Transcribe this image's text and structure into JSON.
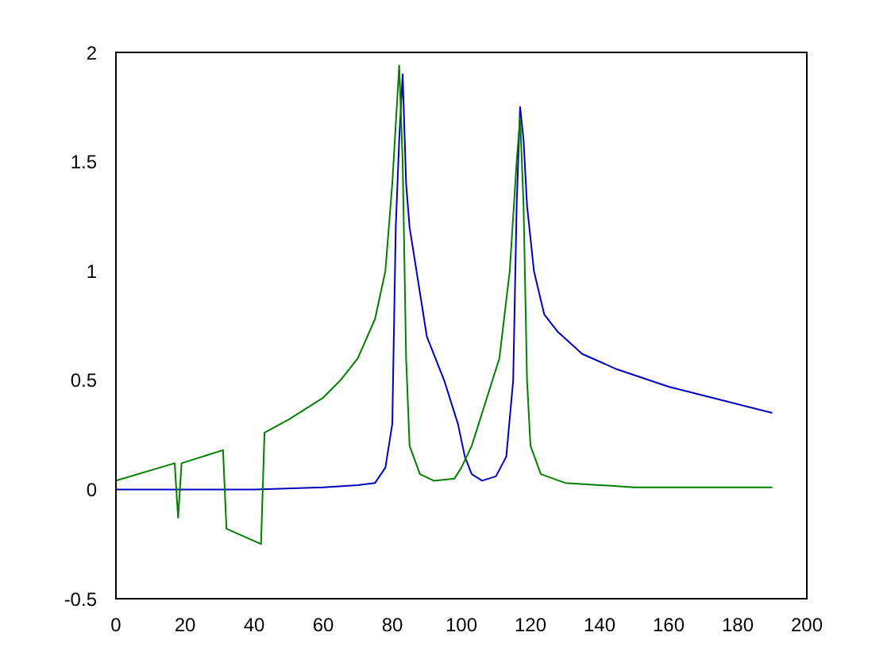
{
  "chart_data": {
    "type": "line",
    "xlim": [
      0,
      200
    ],
    "xticks": [
      0,
      20,
      40,
      60,
      80,
      100,
      120,
      140,
      160,
      180,
      200
    ],
    "ylim": [
      -0.5,
      2
    ],
    "yticks": [
      -0.5,
      0,
      0.5,
      1,
      1.5,
      2
    ],
    "marker": "none",
    "line_style": "solid",
    "series": [
      {
        "color": "#0000c0",
        "x": [
          0,
          40,
          60,
          70,
          75,
          78,
          80,
          81,
          82,
          83,
          84,
          85,
          87,
          90,
          95,
          99,
          101,
          103,
          106,
          110,
          113,
          115,
          116,
          117,
          118,
          119,
          121,
          124,
          128,
          135,
          145,
          160,
          175,
          190
        ],
        "values": [
          0,
          0,
          0.01,
          0.02,
          0.03,
          0.1,
          0.3,
          1.2,
          1.6,
          1.9,
          1.4,
          1.2,
          1.0,
          0.7,
          0.5,
          0.3,
          0.15,
          0.07,
          0.04,
          0.06,
          0.15,
          0.5,
          1.3,
          1.75,
          1.6,
          1.3,
          1.0,
          0.8,
          0.72,
          0.62,
          0.55,
          0.47,
          0.41,
          0.35
        ]
      },
      {
        "color": "#007f00",
        "x": [
          0,
          17,
          18,
          19,
          31,
          32,
          42,
          43,
          50,
          60,
          65,
          70,
          75,
          78,
          80,
          82,
          83,
          84,
          85,
          88,
          92,
          98,
          100,
          103,
          107,
          111,
          114,
          116,
          117,
          118,
          119,
          120,
          123,
          130,
          140,
          150,
          190
        ],
        "values": [
          0.04,
          0.12,
          -0.13,
          0.12,
          0.18,
          -0.18,
          -0.25,
          0.26,
          0.32,
          0.42,
          0.5,
          0.6,
          0.78,
          1.0,
          1.4,
          1.94,
          1.5,
          0.6,
          0.2,
          0.07,
          0.04,
          0.05,
          0.1,
          0.2,
          0.4,
          0.6,
          1.0,
          1.5,
          1.7,
          1.3,
          0.5,
          0.2,
          0.07,
          0.03,
          0.02,
          0.01,
          0.01
        ]
      }
    ]
  }
}
